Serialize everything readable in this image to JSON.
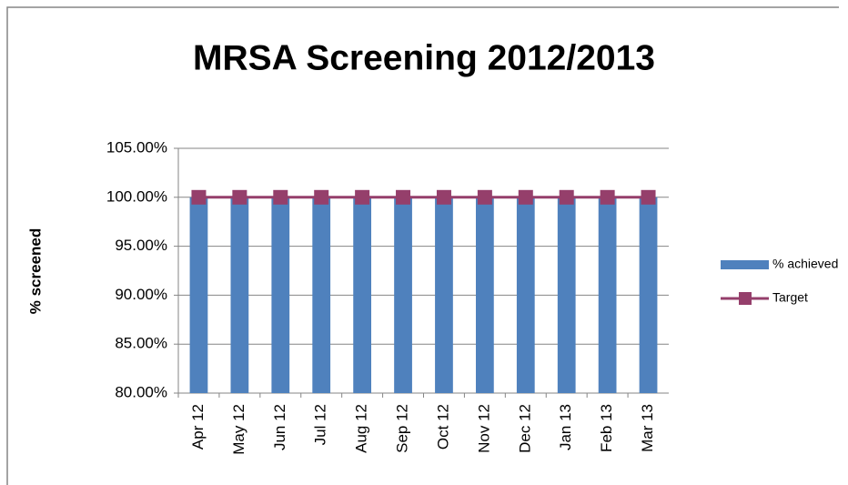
{
  "chart_data": {
    "type": "bar",
    "title": "MRSA Screening 2012/2013",
    "y_label": "% screened",
    "categories": [
      "Apr 12",
      "May 12",
      "Jun 12",
      "Jul 12",
      "Aug 12",
      "Sep 12",
      "Oct 12",
      "Nov 12",
      "Dec 12",
      "Jan 13",
      "Feb 13",
      "Mar 13"
    ],
    "series": [
      {
        "name": "% achieved",
        "type": "bar",
        "color": "#4f81bd",
        "values": [
          100,
          100,
          100,
          100,
          100,
          100,
          100,
          100,
          100,
          100,
          100,
          100
        ]
      },
      {
        "name": "Target",
        "type": "line",
        "color": "#953f6b",
        "values": [
          100,
          100,
          100,
          100,
          100,
          100,
          100,
          100,
          100,
          100,
          100,
          100
        ]
      }
    ],
    "ylim": [
      80,
      105
    ],
    "yticks": [
      {
        "value": 80,
        "label": "80.00%"
      },
      {
        "value": 85,
        "label": "85.00%"
      },
      {
        "value": 90,
        "label": "90.00%"
      },
      {
        "value": 95,
        "label": "95.00%"
      },
      {
        "value": 100,
        "label": "100.00%"
      },
      {
        "value": 105,
        "label": "105.00%"
      }
    ],
    "grid": true,
    "legend": "right"
  }
}
